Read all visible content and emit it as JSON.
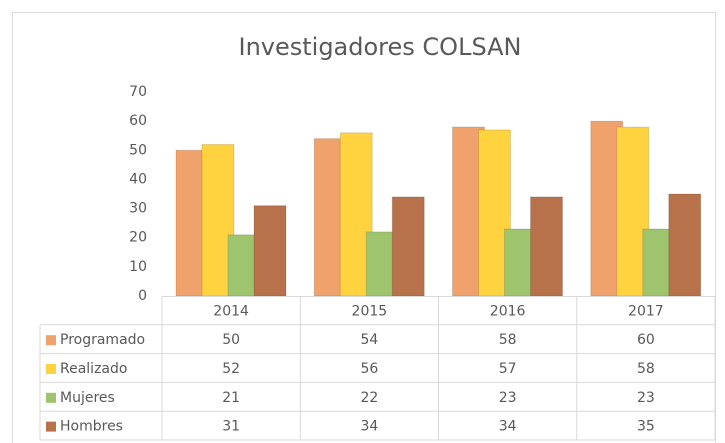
{
  "chart_data": {
    "type": "bar",
    "title": "Investigadores COLSAN",
    "categories": [
      "2014",
      "2015",
      "2016",
      "2017"
    ],
    "series": [
      {
        "name": "Programado",
        "color": "#f0a26c",
        "values": [
          50,
          54,
          58,
          60
        ]
      },
      {
        "name": "Realizado",
        "color": "#ffd23f",
        "values": [
          52,
          56,
          57,
          58
        ]
      },
      {
        "name": "Mujeres",
        "color": "#9ec46e",
        "values": [
          21,
          22,
          23,
          23
        ]
      },
      {
        "name": "Hombres",
        "color": "#b7714b",
        "values": [
          31,
          34,
          34,
          35
        ]
      }
    ],
    "ylim": [
      0,
      70
    ],
    "yticks": [
      0,
      10,
      20,
      30,
      40,
      50,
      60,
      70
    ],
    "grid": false
  }
}
